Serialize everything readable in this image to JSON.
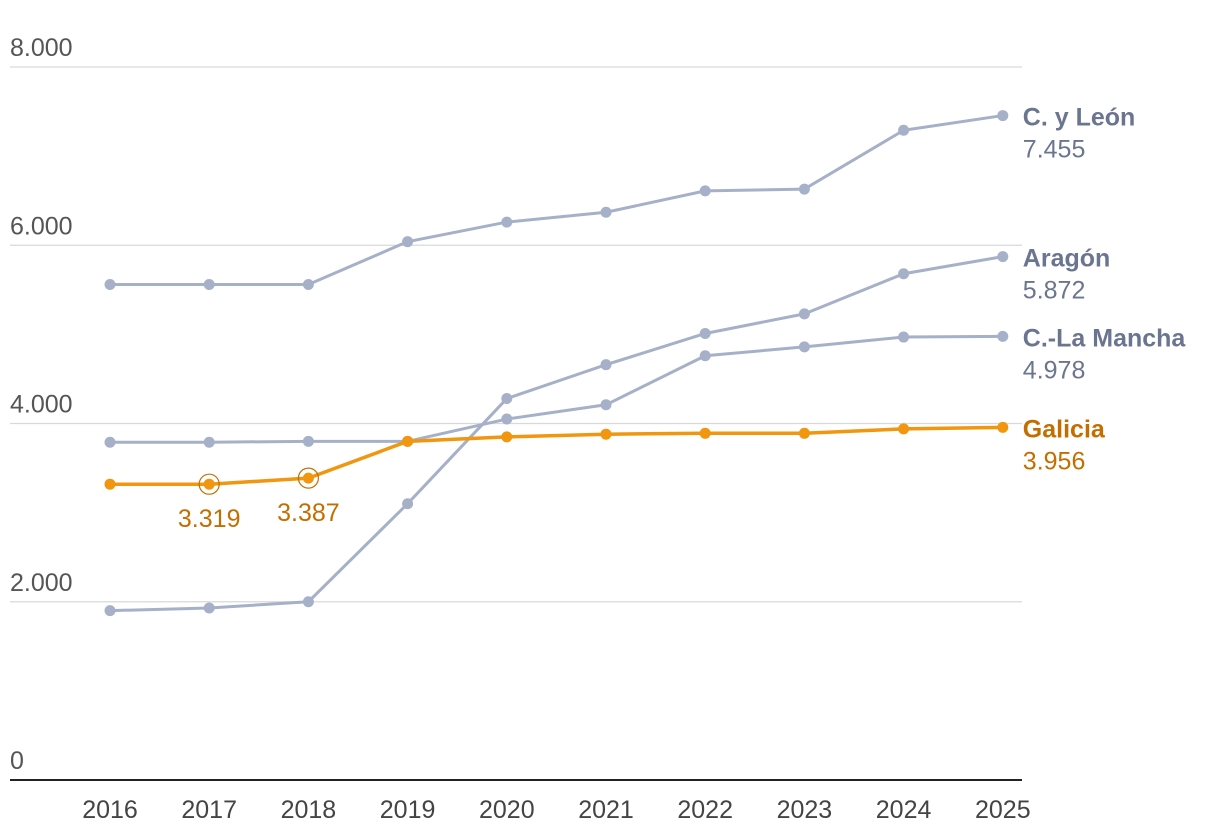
{
  "chart_data": {
    "type": "line",
    "title": "",
    "xlabel": "",
    "ylabel": "",
    "x": [
      "2016",
      "2017",
      "2018",
      "2019",
      "2020",
      "2021",
      "2022",
      "2023",
      "2024",
      "2025"
    ],
    "ylim": [
      0,
      8000
    ],
    "yticks": [
      {
        "value": 0,
        "label": "0"
      },
      {
        "value": 2000,
        "label": "2.000"
      },
      {
        "value": 4000,
        "label": "4.000"
      },
      {
        "value": 6000,
        "label": "6.000"
      },
      {
        "value": 8000,
        "label": "8.000"
      }
    ],
    "grid": true,
    "legend": "direct labels at line ends",
    "series": [
      {
        "key": "cyleon",
        "name": "C. y León",
        "end_label": "7.455",
        "color": "#a6b0c8",
        "label_color": "#6b7590",
        "highlight": false,
        "values": [
          5560,
          5560,
          5560,
          6040,
          6260,
          6370,
          6610,
          6630,
          7290,
          7455
        ]
      },
      {
        "key": "aragon",
        "name": "Aragón",
        "end_label": "5.872",
        "color": "#a6b0c8",
        "label_color": "#6b7590",
        "highlight": false,
        "values": [
          1900,
          1930,
          2000,
          3100,
          4280,
          4660,
          5010,
          5230,
          5680,
          5872
        ]
      },
      {
        "key": "clamancha",
        "name": "C.-La Mancha",
        "end_label": "4.978",
        "color": "#a6b0c8",
        "label_color": "#6b7590",
        "highlight": false,
        "values": [
          3790,
          3790,
          3800,
          3800,
          4050,
          4210,
          4760,
          4860,
          4970,
          4978
        ]
      },
      {
        "key": "galicia",
        "name": "Galicia",
        "end_label": "3.956",
        "color": "#f0960f",
        "label_color": "#c46e00",
        "highlight": true,
        "values": [
          3319,
          3319,
          3387,
          3800,
          3850,
          3880,
          3890,
          3890,
          3940,
          3956
        ],
        "annotations": [
          {
            "index": 1,
            "label": "3.319"
          },
          {
            "index": 2,
            "label": "3.387"
          }
        ]
      }
    ]
  },
  "colors": {
    "grid": "#d9d9d9",
    "axis": "#222222",
    "muted_line": "#a6b0c8",
    "highlight_line": "#f0960f"
  }
}
